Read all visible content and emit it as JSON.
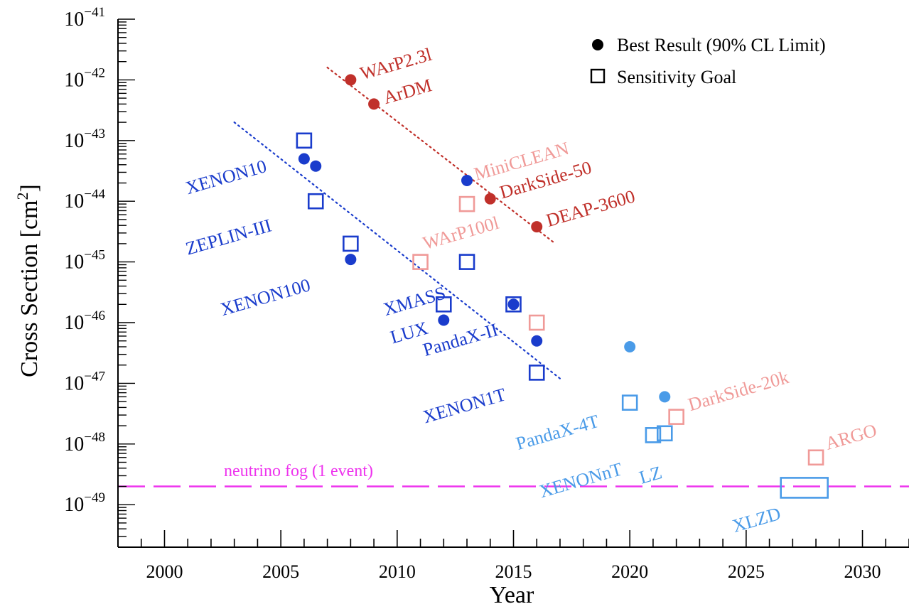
{
  "chart_data": {
    "type": "scatter",
    "xlabel": "Year",
    "ylabel": "Cross Section [cm",
    "ylabel_sup": "2",
    "ylabel_tail": "]",
    "xlim": [
      1998,
      2032
    ],
    "ylim_exp": [
      -49.7,
      -41
    ],
    "y_scale": "log",
    "x_ticks": [
      2000,
      2005,
      2010,
      2015,
      2020,
      2025,
      2030
    ],
    "y_tick_exponents": [
      -41,
      -42,
      -43,
      -44,
      -45,
      -46,
      -47,
      -48,
      -49
    ],
    "y_tick_base": "10",
    "grid": false,
    "legend": {
      "position": "top-right",
      "items": [
        {
          "marker": "circle",
          "label": "Best Result (90% CL Limit)"
        },
        {
          "marker": "square",
          "label": "Sensitivity Goal"
        }
      ]
    },
    "colors": {
      "xenon": "#1a3ccc",
      "argon": "#c0302a",
      "argon_future": "#f09a98",
      "xenon_future": "#4a9be8",
      "fog": "#ee33ee",
      "axis": "#000000"
    },
    "reference_line": {
      "label": "neutrino fog (1 event)",
      "y": 2e-49
    },
    "trend_lines": [
      {
        "group": "xenon",
        "x": [
          2003,
          2017
        ],
        "y": [
          2e-43,
          1.2e-47
        ]
      },
      {
        "group": "argon",
        "x": [
          2007,
          2016.8
        ],
        "y": [
          1.6e-42,
          2e-45
        ]
      }
    ],
    "points": [
      {
        "name": "XENON10",
        "x": 2006,
        "y": 1e-43,
        "marker": "square",
        "group": "xenon"
      },
      {
        "name": "XENON10",
        "x": 2006,
        "y": 5e-44,
        "marker": "circle",
        "group": "xenon"
      },
      {
        "name": "XENON10",
        "x": 2006.5,
        "y": 3.8e-44,
        "marker": "circle",
        "group": "xenon"
      },
      {
        "name": "ZEPLIN-III",
        "x": 2006.5,
        "y": 1e-44,
        "marker": "square",
        "group": "xenon"
      },
      {
        "name": "XENON100",
        "x": 2008,
        "y": 2e-45,
        "marker": "square",
        "group": "xenon"
      },
      {
        "name": "XENON100",
        "x": 2008,
        "y": 1.1e-45,
        "marker": "circle",
        "group": "xenon"
      },
      {
        "name": "MiniCLEAN",
        "x": 2013,
        "y": 2.2e-44,
        "marker": "circle",
        "group": "xenon"
      },
      {
        "name": "XMASS",
        "x": 2013,
        "y": 1e-45,
        "marker": "square",
        "group": "xenon"
      },
      {
        "name": "LUX",
        "x": 2012,
        "y": 2e-46,
        "marker": "square",
        "group": "xenon"
      },
      {
        "name": "LUX",
        "x": 2012,
        "y": 1.1e-46,
        "marker": "circle",
        "group": "xenon"
      },
      {
        "name": "PandaX-II",
        "x": 2015,
        "y": 2e-46,
        "marker": "square",
        "group": "xenon"
      },
      {
        "name": "PandaX-II",
        "x": 2015,
        "y": 2e-46,
        "marker": "circle",
        "group": "xenon"
      },
      {
        "name": "PandaX-II",
        "x": 2016,
        "y": 5e-47,
        "marker": "circle",
        "group": "xenon"
      },
      {
        "name": "XENON1T",
        "x": 2016,
        "y": 1.5e-47,
        "marker": "square",
        "group": "xenon"
      },
      {
        "name": "WArP2.3l",
        "x": 2008,
        "y": 1e-42,
        "marker": "circle",
        "group": "argon"
      },
      {
        "name": "ArDM",
        "x": 2009,
        "y": 4e-43,
        "marker": "circle",
        "group": "argon"
      },
      {
        "name": "DarkSide-50",
        "x": 2014,
        "y": 1.1e-44,
        "marker": "circle",
        "group": "argon"
      },
      {
        "name": "DEAP-3600",
        "x": 2016,
        "y": 3.8e-45,
        "marker": "circle",
        "group": "argon"
      },
      {
        "name": "MiniCLEAN",
        "x": 2013,
        "y": 9e-45,
        "marker": "square",
        "group": "argon_future"
      },
      {
        "name": "WArP100l",
        "x": 2011,
        "y": 1e-45,
        "marker": "square",
        "group": "argon_future"
      },
      {
        "name": "DarkSide-50",
        "x": 2016,
        "y": 1e-46,
        "marker": "square",
        "group": "argon_future"
      },
      {
        "name": "DarkSide-20k",
        "x": 2022,
        "y": 2.8e-48,
        "marker": "square",
        "group": "argon_future"
      },
      {
        "name": "ARGO",
        "x": 2028,
        "y": 6e-49,
        "marker": "square",
        "group": "argon_future"
      },
      {
        "name": "PandaX-4T",
        "x": 2020,
        "y": 4e-47,
        "marker": "circle",
        "group": "xenon_future"
      },
      {
        "name": "PandaX-4T",
        "x": 2020,
        "y": 4.8e-48,
        "marker": "square",
        "group": "xenon_future"
      },
      {
        "name": "LZ",
        "x": 2021.5,
        "y": 6e-48,
        "marker": "circle",
        "group": "xenon_future"
      },
      {
        "name": "XENONnT",
        "x": 2021,
        "y": 1.4e-48,
        "marker": "square",
        "group": "xenon_future"
      },
      {
        "name": "LZ",
        "x": 2021.5,
        "y": 1.5e-48,
        "marker": "square",
        "group": "xenon_future"
      },
      {
        "name": "XLZD",
        "x": 2027.5,
        "y": 1.9e-49,
        "marker": "wide-square",
        "group": "xenon_future"
      }
    ],
    "labels": [
      {
        "text": "WArP2.3l",
        "group": "argon",
        "x": 2008.5,
        "y": 1e-42,
        "rotate": -16
      },
      {
        "text": "ArDM",
        "group": "argon",
        "x": 2009.5,
        "y": 4e-43,
        "rotate": -16
      },
      {
        "text": "MiniCLEAN",
        "group": "argon_future",
        "x": 2013.4,
        "y": 2.2e-44,
        "rotate": -16
      },
      {
        "text": "DarkSide-50",
        "group": "argon",
        "x": 2014.5,
        "y": 1.1e-44,
        "rotate": -16
      },
      {
        "text": "DEAP-3600",
        "group": "argon",
        "x": 2016.5,
        "y": 3.8e-45,
        "rotate": -16
      },
      {
        "text": "WArP100l",
        "group": "argon_future",
        "x": 2011.2,
        "y": 1.6e-45,
        "rotate": -16
      },
      {
        "text": "XENON10",
        "group": "xenon",
        "x": 2001,
        "y": 1.3e-44,
        "rotate": -16
      },
      {
        "text": "ZEPLIN-III",
        "group": "xenon",
        "x": 2001,
        "y": 1.3e-45,
        "rotate": -16
      },
      {
        "text": "XENON100",
        "group": "xenon",
        "x": 2002.5,
        "y": 1.3e-46,
        "rotate": -16
      },
      {
        "text": "XMASS",
        "group": "xenon",
        "x": 2009.5,
        "y": 1.3e-46,
        "rotate": -16
      },
      {
        "text": "LUX",
        "group": "xenon",
        "x": 2009.8,
        "y": 4.5e-47,
        "rotate": -16
      },
      {
        "text": "PandaX-II",
        "group": "xenon",
        "x": 2011.2,
        "y": 2.8e-47,
        "rotate": -16
      },
      {
        "text": "XENON1T",
        "group": "xenon",
        "x": 2011.2,
        "y": 2.2e-48,
        "rotate": -16
      },
      {
        "text": "PandaX-4T",
        "group": "xenon_future",
        "x": 2015.2,
        "y": 8e-49,
        "rotate": -16
      },
      {
        "text": "XENONnT",
        "group": "xenon_future",
        "x": 2016.2,
        "y": 1.3e-49,
        "rotate": -16
      },
      {
        "text": "LZ",
        "group": "xenon_future",
        "x": 2020.5,
        "y": 2.2e-49,
        "rotate": -16
      },
      {
        "text": "DarkSide-20k",
        "group": "argon_future",
        "x": 2022.6,
        "y": 3.5e-48,
        "rotate": -16
      },
      {
        "text": "ARGO",
        "group": "argon_future",
        "x": 2028.5,
        "y": 8e-49,
        "rotate": -16
      },
      {
        "text": "XLZD",
        "group": "xenon_future",
        "x": 2024.5,
        "y": 3.5e-50,
        "rotate": -16
      }
    ]
  }
}
